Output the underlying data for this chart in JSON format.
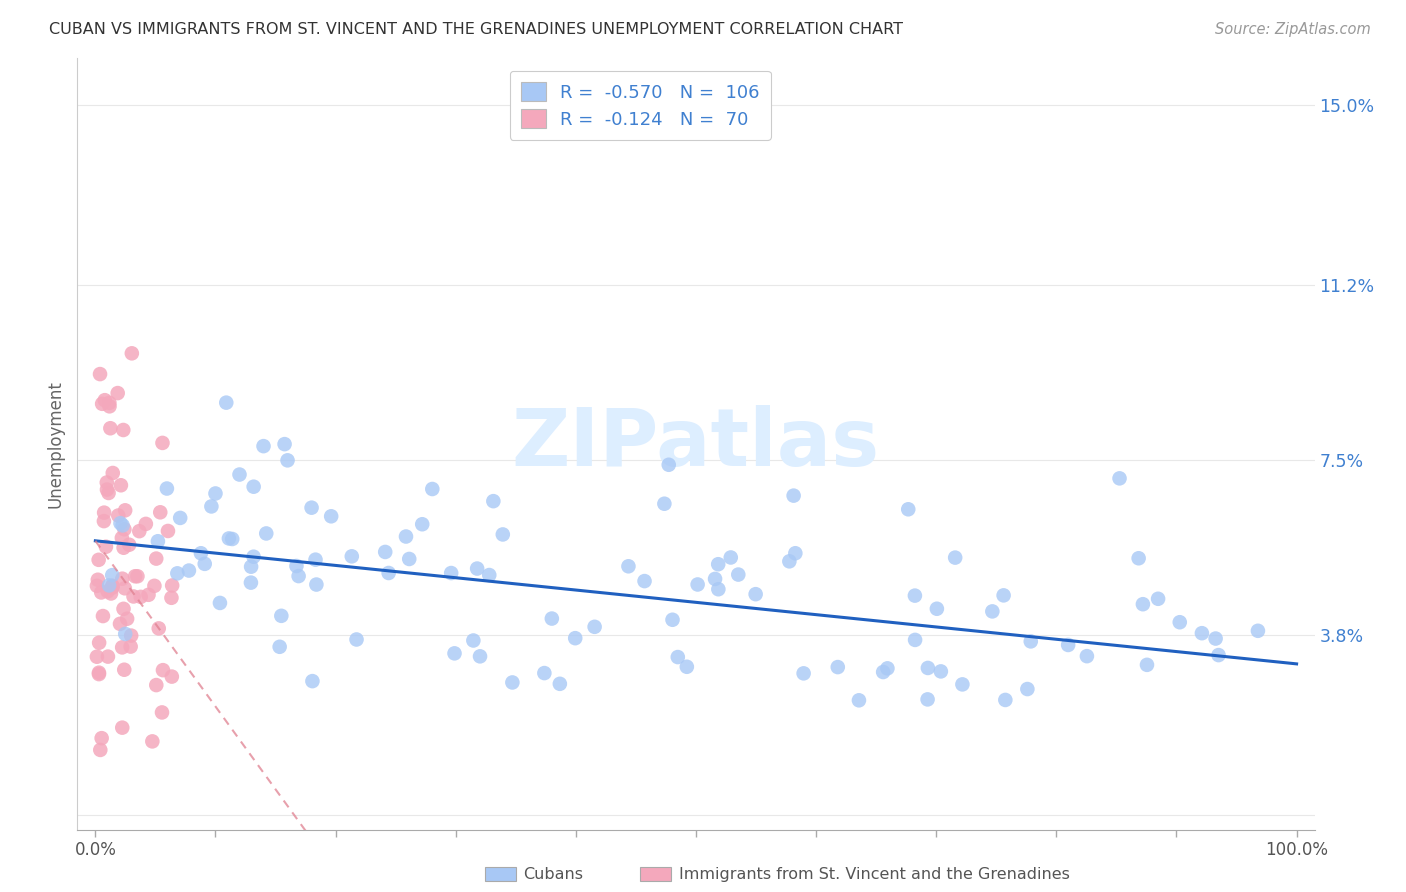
{
  "title": "CUBAN VS IMMIGRANTS FROM ST. VINCENT AND THE GRENADINES UNEMPLOYMENT CORRELATION CHART",
  "source": "Source: ZipAtlas.com",
  "ylabel": "Unemployment",
  "legend_r_cuban": "-0.570",
  "legend_n_cuban": "106",
  "legend_r_svg": "-0.124",
  "legend_n_svg": "70",
  "cuban_color": "#a8c8f5",
  "svg_color": "#f4a8bc",
  "cuban_line_color": "#2060c0",
  "svg_line_color": "#e08090",
  "watermark_color": "#ddeeff",
  "background_color": "#ffffff",
  "grid_color": "#e8e8e8",
  "right_axis_color": "#4080d0",
  "y_tick_positions": [
    0.0,
    0.038,
    0.075,
    0.112,
    0.15
  ],
  "y_tick_labels": [
    "",
    "3.8%",
    "7.5%",
    "11.2%",
    "15.0%"
  ],
  "x_tick_positions": [
    0.0,
    0.1,
    0.2,
    0.3,
    0.4,
    0.5,
    0.6,
    0.7,
    0.8,
    0.9,
    1.0
  ],
  "xlim": [
    -0.015,
    1.015
  ],
  "ylim": [
    -0.003,
    0.16
  ],
  "cuban_scatter_seed": 42,
  "svg_scatter_seed": 7
}
